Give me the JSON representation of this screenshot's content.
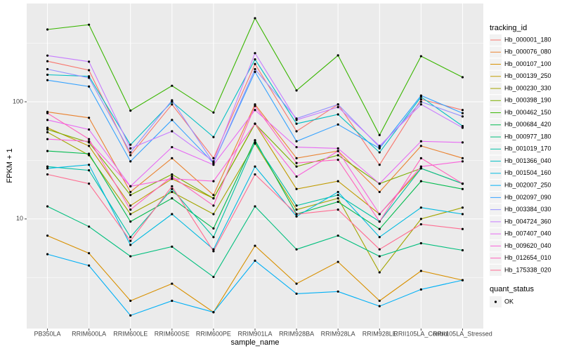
{
  "chart_data": {
    "type": "line",
    "x_label": "sample_name",
    "y_label": "FPKM + 1",
    "log_y": true,
    "grid": true,
    "legend_title": "tracking_id",
    "point_legend_title": "quant_status",
    "point_legend_labels": [
      "OK"
    ],
    "categories": [
      "PB350LA",
      "RRIM600LA",
      "RRIM600LE",
      "RRIM600SE",
      "RRIM600PE",
      "RRIM901LA",
      "RRIM928BA",
      "RRIM928LA",
      "RRIM928LE",
      "RRII105LA_Control",
      "RRII105LA_Stressed"
    ],
    "ylim": [
      1.16,
      690
    ],
    "yticks": [
      10,
      100
    ],
    "series": [
      {
        "name": "Hb_000001_180",
        "color": "#F8766D",
        "values": [
          222,
          186,
          35,
          95,
          33,
          210,
          56,
          95,
          29,
          105,
          85
        ]
      },
      {
        "name": "Hb_000076_080",
        "color": "#EA8331",
        "values": [
          82,
          73,
          17,
          33,
          16,
          95,
          33,
          38,
          17,
          42,
          33
        ]
      },
      {
        "name": "Hb_000107_100",
        "color": "#D89000",
        "values": [
          7.2,
          5.1,
          2.0,
          2.8,
          1.6,
          5.9,
          2.8,
          4.3,
          2.0,
          3.6,
          3.0
        ]
      },
      {
        "name": "Hb_000139_250",
        "color": "#C09B00",
        "values": [
          60,
          42,
          13,
          22,
          15,
          65,
          18,
          21,
          11,
          27,
          20
        ]
      },
      {
        "name": "Hb_000230_330",
        "color": "#A3A500",
        "values": [
          55,
          35,
          11,
          17,
          11,
          44,
          12,
          15,
          3.5,
          10,
          12.5
        ]
      },
      {
        "name": "Hb_000398_190",
        "color": "#7CAE00",
        "values": [
          58,
          45,
          16,
          24,
          15,
          65,
          28,
          35,
          20,
          27,
          20
        ]
      },
      {
        "name": "Hb_000462_150",
        "color": "#39B600",
        "values": [
          414,
          455,
          84,
          137,
          81,
          517,
          125,
          249,
          52,
          245,
          162
        ]
      },
      {
        "name": "Hb_000684_420",
        "color": "#00BB4E",
        "values": [
          38,
          36,
          9.5,
          15,
          8.3,
          47,
          11,
          14,
          8.2,
          21,
          18
        ]
      },
      {
        "name": "Hb_000977_180",
        "color": "#00BF7D",
        "values": [
          12.8,
          8.6,
          4.8,
          5.8,
          3.2,
          12.8,
          5.5,
          7.2,
          4.8,
          6.2,
          5.4
        ]
      },
      {
        "name": "Hb_001019_170",
        "color": "#00C1A3",
        "values": [
          28,
          26,
          7,
          18,
          7,
          45,
          13,
          16,
          9.5,
          27,
          20
        ]
      },
      {
        "name": "Hb_001366_040",
        "color": "#00BFC4",
        "values": [
          170,
          165,
          43,
          100,
          50,
          230,
          65,
          78,
          37,
          110,
          62
        ]
      },
      {
        "name": "Hb_001504_160",
        "color": "#00BAE0",
        "values": [
          27,
          29,
          6,
          11,
          5.5,
          28,
          10.5,
          17,
          7,
          12.5,
          11
        ]
      },
      {
        "name": "Hb_002007_250",
        "color": "#00B0F6",
        "values": [
          5,
          4,
          1.5,
          2,
          1.6,
          4.4,
          2.3,
          2.4,
          1.8,
          2.5,
          3
        ]
      },
      {
        "name": "Hb_002097_090",
        "color": "#35A2FF",
        "values": [
          153,
          135,
          31,
          70,
          30,
          180,
          46,
          64,
          40,
          113,
          80
        ]
      },
      {
        "name": "Hb_003384_030",
        "color": "#9590FF",
        "values": [
          190,
          160,
          37,
          103,
          30,
          190,
          72,
          95,
          41,
          100,
          75
        ]
      },
      {
        "name": "Hb_004724_360",
        "color": "#C77CFF",
        "values": [
          248,
          220,
          40,
          56,
          31,
          260,
          70,
          90,
          42,
          95,
          60
        ]
      },
      {
        "name": "Hb_007407_040",
        "color": "#E76BF3",
        "values": [
          70,
          58,
          19,
          41,
          29,
          85,
          41,
          40,
          20,
          46,
          45
        ]
      },
      {
        "name": "Hb_009620_040",
        "color": "#FA62DB",
        "values": [
          48,
          46,
          19,
          22,
          21,
          65,
          23,
          38,
          11,
          28,
          31
        ]
      },
      {
        "name": "Hb_012654_010",
        "color": "#FF62BC",
        "values": [
          80,
          48,
          12,
          23,
          13,
          92,
          30,
          32,
          9.5,
          33,
          20
        ]
      },
      {
        "name": "Hb_175338_020",
        "color": "#FF6C91",
        "values": [
          24,
          20,
          6.5,
          19,
          5.3,
          24,
          11,
          12,
          5.5,
          9,
          8.2
        ]
      }
    ]
  }
}
